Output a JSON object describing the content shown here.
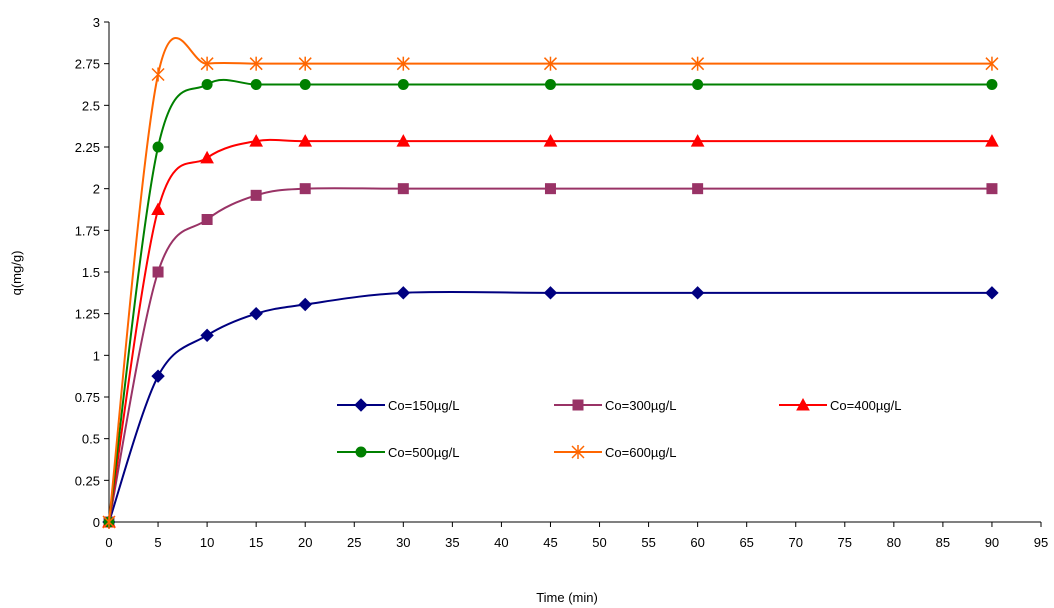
{
  "chart_data": {
    "type": "line",
    "xlabel": "Time (min)",
    "ylabel": "q(mg/g)",
    "xlim": [
      0,
      95
    ],
    "ylim": [
      0,
      3
    ],
    "x_ticks": [
      0,
      5,
      10,
      15,
      20,
      25,
      30,
      35,
      40,
      45,
      50,
      55,
      60,
      65,
      70,
      75,
      80,
      85,
      90,
      95
    ],
    "y_ticks": [
      "0",
      "0.25",
      "0.5",
      "0.75",
      "1",
      "1.25",
      "1.5",
      "1.75",
      "2",
      "2.25",
      "2.5",
      "2.75",
      "3"
    ],
    "grid": false,
    "legend_position": "center",
    "x": [
      0,
      5,
      10,
      15,
      20,
      30,
      45,
      60,
      90
    ],
    "series": [
      {
        "name": "Co=150µg/L",
        "values": [
          0,
          0.875,
          1.12,
          1.25,
          1.305,
          1.375,
          1.375,
          1.375,
          1.375
        ],
        "color": "#000080",
        "marker": "diamond"
      },
      {
        "name": "Co=300µg/L",
        "values": [
          0,
          1.5,
          1.815,
          1.96,
          2.0,
          2.0,
          2.0,
          2.0,
          2.0
        ],
        "color": "#993366",
        "marker": "square"
      },
      {
        "name": "Co=400µg/L",
        "values": [
          0,
          1.875,
          2.185,
          2.285,
          2.285,
          2.285,
          2.285,
          2.285,
          2.285
        ],
        "color": "#ff0000",
        "marker": "triangle"
      },
      {
        "name": "Co=500µg/L",
        "values": [
          0,
          2.25,
          2.625,
          2.625,
          2.625,
          2.625,
          2.625,
          2.625,
          2.625
        ],
        "color": "#008000",
        "marker": "circle"
      },
      {
        "name": "Co=600µg/L",
        "values": [
          0,
          2.685,
          2.75,
          2.75,
          2.75,
          2.75,
          2.75,
          2.75,
          2.75
        ],
        "color": "#ff6600",
        "marker": "star"
      }
    ]
  }
}
